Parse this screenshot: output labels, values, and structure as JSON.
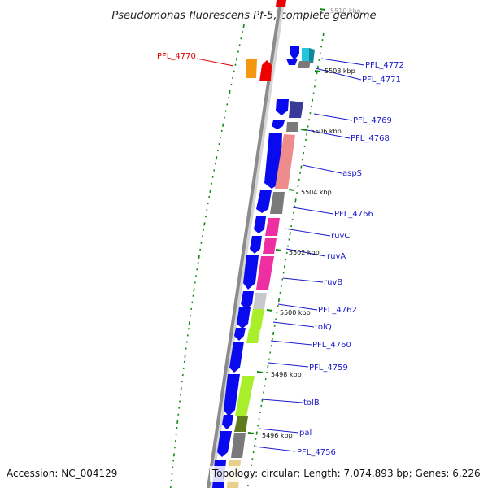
{
  "title": "Pseudomonas fluorescens Pf-5, complete genome",
  "footer": {
    "accession": "Accession: NC_004129",
    "topology": "Topology: circular; Length: 7,074,893 bp; Genes: 6,226"
  },
  "colors": {
    "axis": "#8c8c8c",
    "blue_gene": "#0a0aee",
    "label_blue": "#1a1acc",
    "label_red": "#dd0000",
    "tick_green": "#138a13",
    "cyan": "#22c6dc",
    "orange": "#f5960f",
    "red": "#ee0000",
    "indigo": "#3a3a99",
    "gray": "#7a7a7a",
    "salmon": "#ee8c8c",
    "pink": "#ee2fa2",
    "lightgray": "#c8c8cc",
    "lime": "#a8ee2a",
    "olive": "#5f7a1f",
    "tan": "#e8d08a"
  },
  "gene_labels": [
    {
      "id": "PFL_4772",
      "text": "PFL_4772",
      "color": "blue"
    },
    {
      "id": "PFL_4771",
      "text": "PFL_4771",
      "color": "blue"
    },
    {
      "id": "PFL_4770",
      "text": "PFL_4770",
      "color": "red"
    },
    {
      "id": "PFL_4769",
      "text": "PFL_4769",
      "color": "blue"
    },
    {
      "id": "PFL_4768",
      "text": "PFL_4768",
      "color": "blue"
    },
    {
      "id": "aspS",
      "text": "aspS",
      "color": "blue"
    },
    {
      "id": "PFL_4766",
      "text": "PFL_4766",
      "color": "blue"
    },
    {
      "id": "ruvC",
      "text": "ruvC",
      "color": "blue"
    },
    {
      "id": "ruvA",
      "text": "ruvA",
      "color": "blue"
    },
    {
      "id": "ruvB",
      "text": "ruvB",
      "color": "blue"
    },
    {
      "id": "PFL_4762",
      "text": "PFL_4762",
      "color": "blue"
    },
    {
      "id": "tolQ",
      "text": "tolQ",
      "color": "blue"
    },
    {
      "id": "PFL_4760",
      "text": "PFL_4760",
      "color": "blue"
    },
    {
      "id": "PFL_4759",
      "text": "PFL_4759",
      "color": "blue"
    },
    {
      "id": "tolB",
      "text": "tolB",
      "color": "blue"
    },
    {
      "id": "pal",
      "text": "pal",
      "color": "blue"
    },
    {
      "id": "PFL_4756",
      "text": "PFL_4756",
      "color": "blue"
    }
  ],
  "kbp_labels": [
    {
      "text": "5510 kbp",
      "faint": true
    },
    {
      "text": "5508 kbp",
      "faint": false
    },
    {
      "text": "5506 kbp",
      "faint": false
    },
    {
      "text": "5504 kbp",
      "faint": false
    },
    {
      "text": "5502 kbp",
      "faint": false
    },
    {
      "text": "5500 kbp",
      "faint": false
    },
    {
      "text": "5498 kbp",
      "faint": false
    },
    {
      "text": "5496 kbp",
      "faint": false
    }
  ]
}
